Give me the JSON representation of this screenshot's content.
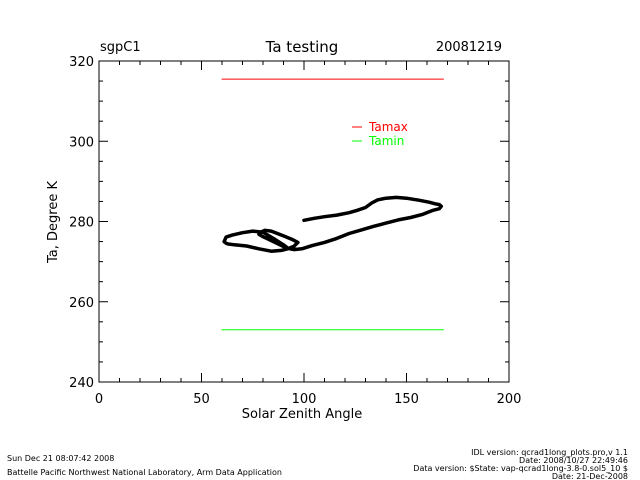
{
  "header": {
    "site": "sgpC1",
    "title": "Ta testing",
    "date": "20081219"
  },
  "footer": {
    "left_line1": "Sun Dec 21 08:07:42 2008",
    "left_line2": "Battelle Pacific Northwest National Laboratory, Arm Data Application",
    "right_line1": "IDL version: qcrad1long_plots.pro,v 1.1",
    "right_line2": "Date: 2008/10/27 22:49:46",
    "right_line3": "Data version: $State: vap-qcrad1long-3.8-0.sol5_10 $",
    "right_line4": "Date: 21-Dec-2008"
  },
  "colors": {
    "tamax": "#ff0000",
    "tamin": "#00ff00",
    "data": "#000000",
    "axes": "#000000"
  },
  "chart_data": {
    "type": "line",
    "title": "Ta testing",
    "xlabel": "Solar Zenith Angle",
    "ylabel": "Ta, Degree K",
    "xlim": [
      0,
      200
    ],
    "ylim": [
      240,
      320
    ],
    "x_ticks": [
      0,
      50,
      100,
      150,
      200
    ],
    "y_ticks": [
      240,
      260,
      280,
      300,
      320
    ],
    "x_tick_labels": [
      "0",
      "50",
      "100",
      "150",
      "200"
    ],
    "y_tick_labels": [
      "240",
      "260",
      "280",
      "300",
      "320"
    ],
    "x_minor_step": 10,
    "y_minor_step": 5,
    "grid": false,
    "legend_position": "top-right",
    "series": [
      {
        "name": "Tamax",
        "color": "#ff0000",
        "x": [
          60,
          168
        ],
        "y": [
          315.5,
          315.5
        ]
      },
      {
        "name": "Tamin",
        "color": "#00ff00",
        "x": [
          60,
          168
        ],
        "y": [
          253,
          253
        ]
      },
      {
        "color": "#000000",
        "x": [
          100,
          105,
          110,
          116,
          122,
          126,
          130,
          133,
          136,
          140,
          145,
          150,
          156,
          161,
          164,
          166,
          167,
          166,
          163,
          158,
          152,
          146,
          140,
          134,
          128,
          122,
          116,
          110,
          104,
          99,
          95,
          91,
          87,
          83,
          80,
          78,
          78,
          80,
          81,
          84,
          87,
          90,
          94,
          97,
          95,
          92,
          89,
          84,
          78,
          72,
          66,
          63,
          62,
          61,
          62,
          65,
          70,
          75,
          80,
          85,
          90,
          92,
          94,
          96
        ],
        "y": [
          280.3,
          280.8,
          281.2,
          281.6,
          282.2,
          282.8,
          283.5,
          284.6,
          285.4,
          285.8,
          286.0,
          285.8,
          285.3,
          284.8,
          284.4,
          284.2,
          283.8,
          283.2,
          282.8,
          281.8,
          281.0,
          280.4,
          279.6,
          278.8,
          277.9,
          277.0,
          275.8,
          274.8,
          274.0,
          273.2,
          273.0,
          273.5,
          274.5,
          275.5,
          276.2,
          276.8,
          277.2,
          277.6,
          277.8,
          277.6,
          277.0,
          276.4,
          275.6,
          274.8,
          273.8,
          273.2,
          272.8,
          272.6,
          273.2,
          273.9,
          274.2,
          274.4,
          274.6,
          275.0,
          276.1,
          276.6,
          277.2,
          277.6,
          277.3,
          275.8,
          274.2,
          273.4,
          273.1,
          273.1
        ]
      }
    ]
  }
}
